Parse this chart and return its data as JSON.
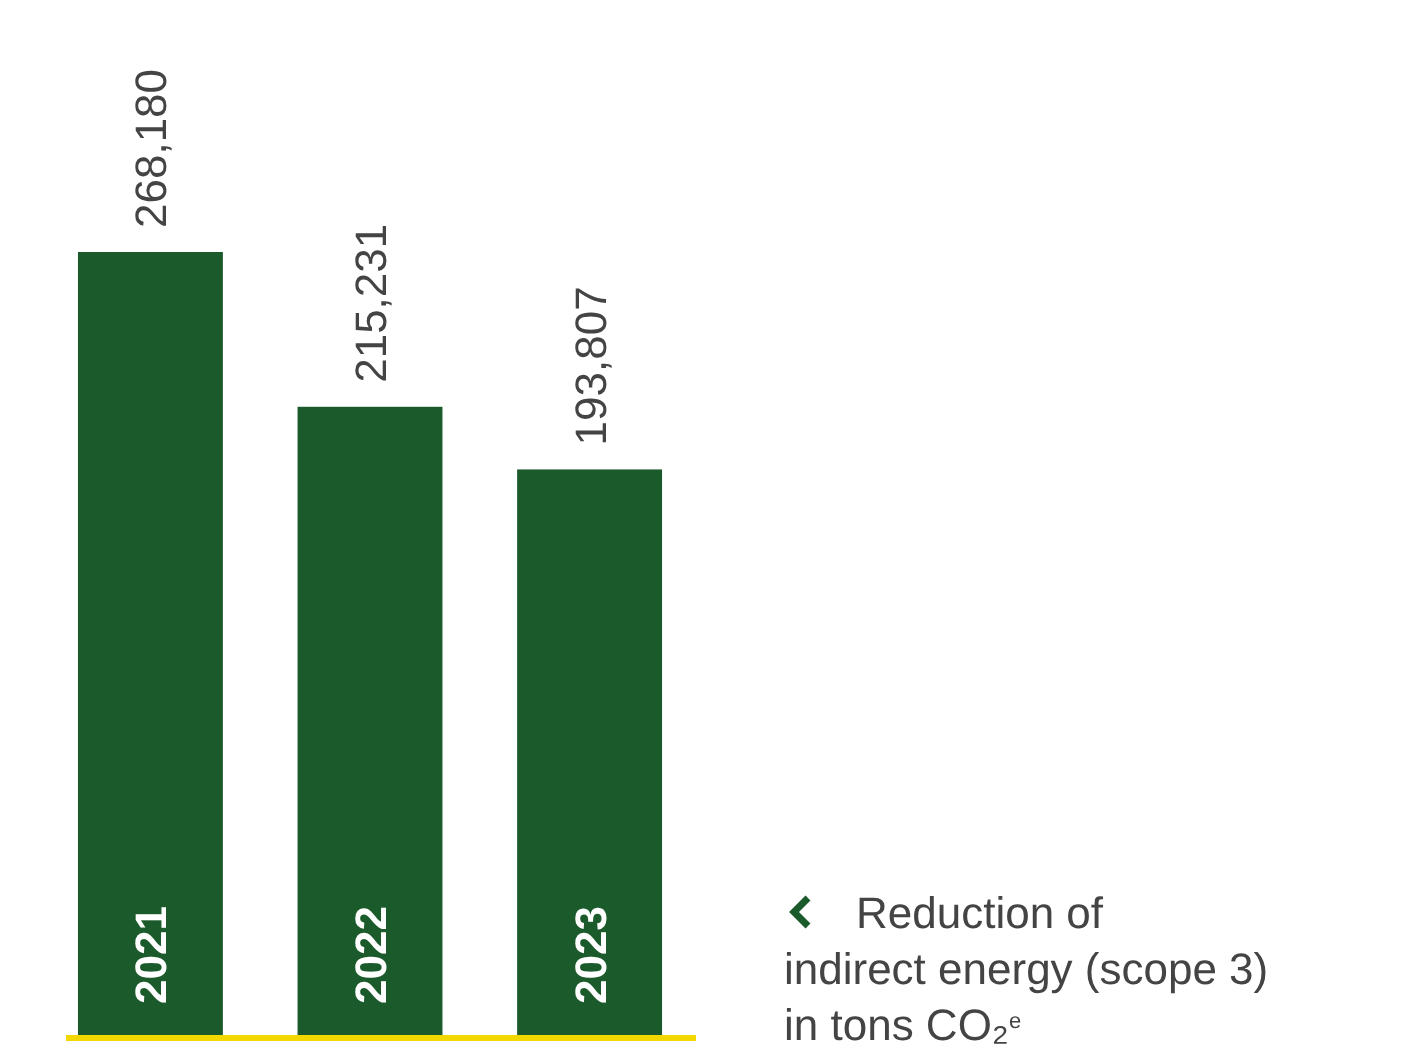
{
  "chart_data": {
    "type": "bar",
    "categories": [
      "2021",
      "2022",
      "2023"
    ],
    "values": [
      268180,
      215231,
      193807
    ],
    "value_labels": [
      "268,180",
      "215,231",
      "193,807"
    ],
    "color": "#1b5a2b",
    "annotations": [
      "Reduction of\nindirect energy (scope 3)\nin tons CO₂$^{e}$"
    ]
  }
}
